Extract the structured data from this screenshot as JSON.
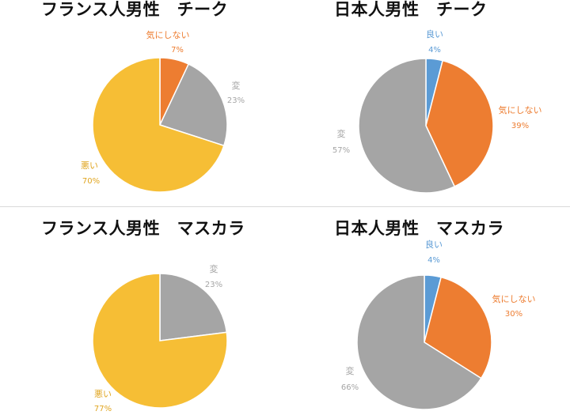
{
  "chart_data": [
    {
      "type": "pie",
      "title": "フランス人男性　チーク",
      "start": "top",
      "direction": "clockwise",
      "slices": [
        {
          "label": "気にしない",
          "value": 7,
          "display": "7%",
          "color": "#ED7D31"
        },
        {
          "label": "変",
          "value": 23,
          "display": "23%",
          "color": "#A5A5A5"
        },
        {
          "label": "悪い",
          "value": 70,
          "display": "70%",
          "color": "#F6BE35"
        }
      ]
    },
    {
      "type": "pie",
      "title": "日本人男性　チーク",
      "start": "top",
      "direction": "clockwise",
      "slices": [
        {
          "label": "良い",
          "value": 4,
          "display": "4%",
          "color": "#5B9BD5"
        },
        {
          "label": "気にしない",
          "value": 39,
          "display": "39%",
          "color": "#ED7D31"
        },
        {
          "label": "変",
          "value": 57,
          "display": "57%",
          "color": "#A5A5A5"
        }
      ]
    },
    {
      "type": "pie",
      "title": "フランス人男性　マスカラ",
      "start": "top",
      "direction": "clockwise",
      "slices": [
        {
          "label": "変",
          "value": 23,
          "display": "23%",
          "color": "#A5A5A5"
        },
        {
          "label": "悪い",
          "value": 77,
          "display": "77%",
          "color": "#F6BE35"
        }
      ]
    },
    {
      "type": "pie",
      "title": "日本人男性　マスカラ",
      "start": "top",
      "direction": "clockwise",
      "slices": [
        {
          "label": "良い",
          "value": 4,
          "display": "4%",
          "color": "#5B9BD5"
        },
        {
          "label": "気にしない",
          "value": 30,
          "display": "30%",
          "color": "#ED7D31"
        },
        {
          "label": "変",
          "value": 66,
          "display": "66%",
          "color": "#A5A5A5"
        }
      ]
    }
  ]
}
